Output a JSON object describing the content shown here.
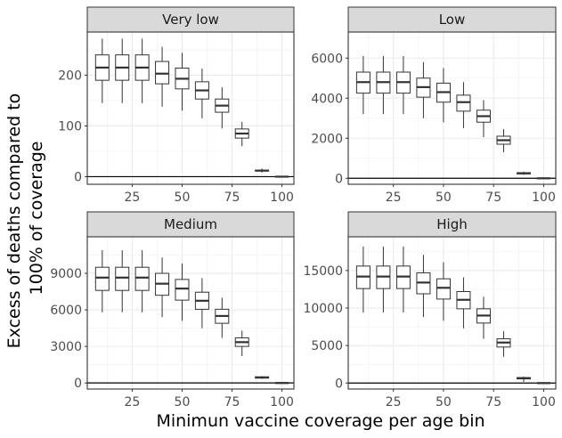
{
  "chart_data": {
    "type": "boxplot",
    "layout": "facet-grid 2x2",
    "xlabel": "Minimun vaccine coverage per age bin",
    "ylabel": [
      "Excess of deaths compared to",
      "100% of coverage"
    ],
    "x_ticks": [
      25,
      50,
      75,
      100
    ],
    "xlim": [
      2.5,
      106
    ],
    "grid": true,
    "reference_line_y": 0,
    "x": [
      10,
      20,
      30,
      40,
      50,
      60,
      70,
      80,
      90,
      100
    ],
    "panels": [
      {
        "title": "Very low",
        "ylim": [
          -15,
          285
        ],
        "y_ticks": [
          0,
          100,
          200
        ],
        "boxes": [
          {
            "x": 10,
            "min": 145,
            "q1": 190,
            "median": 215,
            "q3": 240,
            "max": 272
          },
          {
            "x": 20,
            "min": 145,
            "q1": 190,
            "median": 215,
            "q3": 240,
            "max": 272
          },
          {
            "x": 30,
            "min": 145,
            "q1": 190,
            "median": 215,
            "q3": 240,
            "max": 272
          },
          {
            "x": 40,
            "min": 138,
            "q1": 183,
            "median": 203,
            "q3": 227,
            "max": 256
          },
          {
            "x": 50,
            "min": 130,
            "q1": 173,
            "median": 193,
            "q3": 214,
            "max": 244
          },
          {
            "x": 60,
            "min": 115,
            "q1": 153,
            "median": 170,
            "q3": 187,
            "max": 213
          },
          {
            "x": 70,
            "min": 95,
            "q1": 127,
            "median": 140,
            "q3": 153,
            "max": 176
          },
          {
            "x": 80,
            "min": 60,
            "q1": 76,
            "median": 85,
            "q3": 94,
            "max": 108
          },
          {
            "x": 90,
            "min": 8,
            "q1": 11,
            "median": 12,
            "q3": 13,
            "max": 16
          },
          {
            "x": 100,
            "min": 0,
            "q1": 0,
            "median": 0,
            "q3": 0,
            "max": 0
          }
        ]
      },
      {
        "title": "Low",
        "ylim": [
          -300,
          7300
        ],
        "y_ticks": [
          0,
          2000,
          4000,
          6000
        ],
        "boxes": [
          {
            "x": 10,
            "min": 3200,
            "q1": 4250,
            "median": 4800,
            "q3": 5300,
            "max": 6100
          },
          {
            "x": 20,
            "min": 3200,
            "q1": 4250,
            "median": 4800,
            "q3": 5300,
            "max": 6100
          },
          {
            "x": 30,
            "min": 3200,
            "q1": 4250,
            "median": 4800,
            "q3": 5300,
            "max": 6100
          },
          {
            "x": 40,
            "min": 3000,
            "q1": 4050,
            "median": 4550,
            "q3": 5000,
            "max": 5800
          },
          {
            "x": 50,
            "min": 2800,
            "q1": 3800,
            "median": 4300,
            "q3": 4750,
            "max": 5500
          },
          {
            "x": 60,
            "min": 2500,
            "q1": 3350,
            "median": 3800,
            "q3": 4150,
            "max": 4800
          },
          {
            "x": 70,
            "min": 2050,
            "q1": 2800,
            "median": 3100,
            "q3": 3400,
            "max": 3900
          },
          {
            "x": 80,
            "min": 1300,
            "q1": 1700,
            "median": 1900,
            "q3": 2100,
            "max": 2450
          },
          {
            "x": 90,
            "min": 170,
            "q1": 220,
            "median": 250,
            "q3": 280,
            "max": 330
          },
          {
            "x": 100,
            "min": 0,
            "q1": 0,
            "median": 0,
            "q3": 0,
            "max": 0
          }
        ]
      },
      {
        "title": "Medium",
        "ylim": [
          -500,
          12000
        ],
        "y_ticks": [
          0,
          3000,
          6000,
          9000
        ],
        "boxes": [
          {
            "x": 10,
            "min": 5800,
            "q1": 7600,
            "median": 8650,
            "q3": 9500,
            "max": 10900
          },
          {
            "x": 20,
            "min": 5800,
            "q1": 7600,
            "median": 8650,
            "q3": 9500,
            "max": 10900
          },
          {
            "x": 30,
            "min": 5800,
            "q1": 7600,
            "median": 8650,
            "q3": 9500,
            "max": 10900
          },
          {
            "x": 40,
            "min": 5400,
            "q1": 7200,
            "median": 8150,
            "q3": 9000,
            "max": 10300
          },
          {
            "x": 50,
            "min": 5100,
            "q1": 6800,
            "median": 7750,
            "q3": 8500,
            "max": 9800
          },
          {
            "x": 60,
            "min": 4500,
            "q1": 6050,
            "median": 6750,
            "q3": 7450,
            "max": 8600
          },
          {
            "x": 70,
            "min": 3700,
            "q1": 4900,
            "median": 5500,
            "q3": 6050,
            "max": 7000
          },
          {
            "x": 80,
            "min": 2200,
            "q1": 3000,
            "median": 3350,
            "q3": 3700,
            "max": 4300
          },
          {
            "x": 90,
            "min": 330,
            "q1": 400,
            "median": 450,
            "q3": 500,
            "max": 560
          },
          {
            "x": 100,
            "min": 0,
            "q1": 0,
            "median": 0,
            "q3": 0,
            "max": 0
          }
        ]
      },
      {
        "title": "High",
        "ylim": [
          -800,
          19500
        ],
        "y_ticks": [
          0,
          5000,
          10000,
          15000
        ],
        "boxes": [
          {
            "x": 10,
            "min": 9400,
            "q1": 12600,
            "median": 14200,
            "q3": 15600,
            "max": 18200
          },
          {
            "x": 20,
            "min": 9400,
            "q1": 12600,
            "median": 14200,
            "q3": 15600,
            "max": 18200
          },
          {
            "x": 30,
            "min": 9400,
            "q1": 12600,
            "median": 14200,
            "q3": 15600,
            "max": 18200
          },
          {
            "x": 40,
            "min": 8800,
            "q1": 11900,
            "median": 13400,
            "q3": 14700,
            "max": 17100
          },
          {
            "x": 50,
            "min": 8300,
            "q1": 11200,
            "median": 12700,
            "q3": 13900,
            "max": 16100
          },
          {
            "x": 60,
            "min": 7300,
            "q1": 9900,
            "median": 11100,
            "q3": 12200,
            "max": 14100
          },
          {
            "x": 70,
            "min": 5900,
            "q1": 8000,
            "median": 9000,
            "q3": 9900,
            "max": 11500
          },
          {
            "x": 80,
            "min": 3500,
            "q1": 4800,
            "median": 5400,
            "q3": 5900,
            "max": 6900
          },
          {
            "x": 90,
            "min": 150,
            "q1": 550,
            "median": 650,
            "q3": 720,
            "max": 850
          },
          {
            "x": 100,
            "min": 0,
            "q1": 0,
            "median": 0,
            "q3": 0,
            "max": 0
          }
        ]
      }
    ]
  }
}
